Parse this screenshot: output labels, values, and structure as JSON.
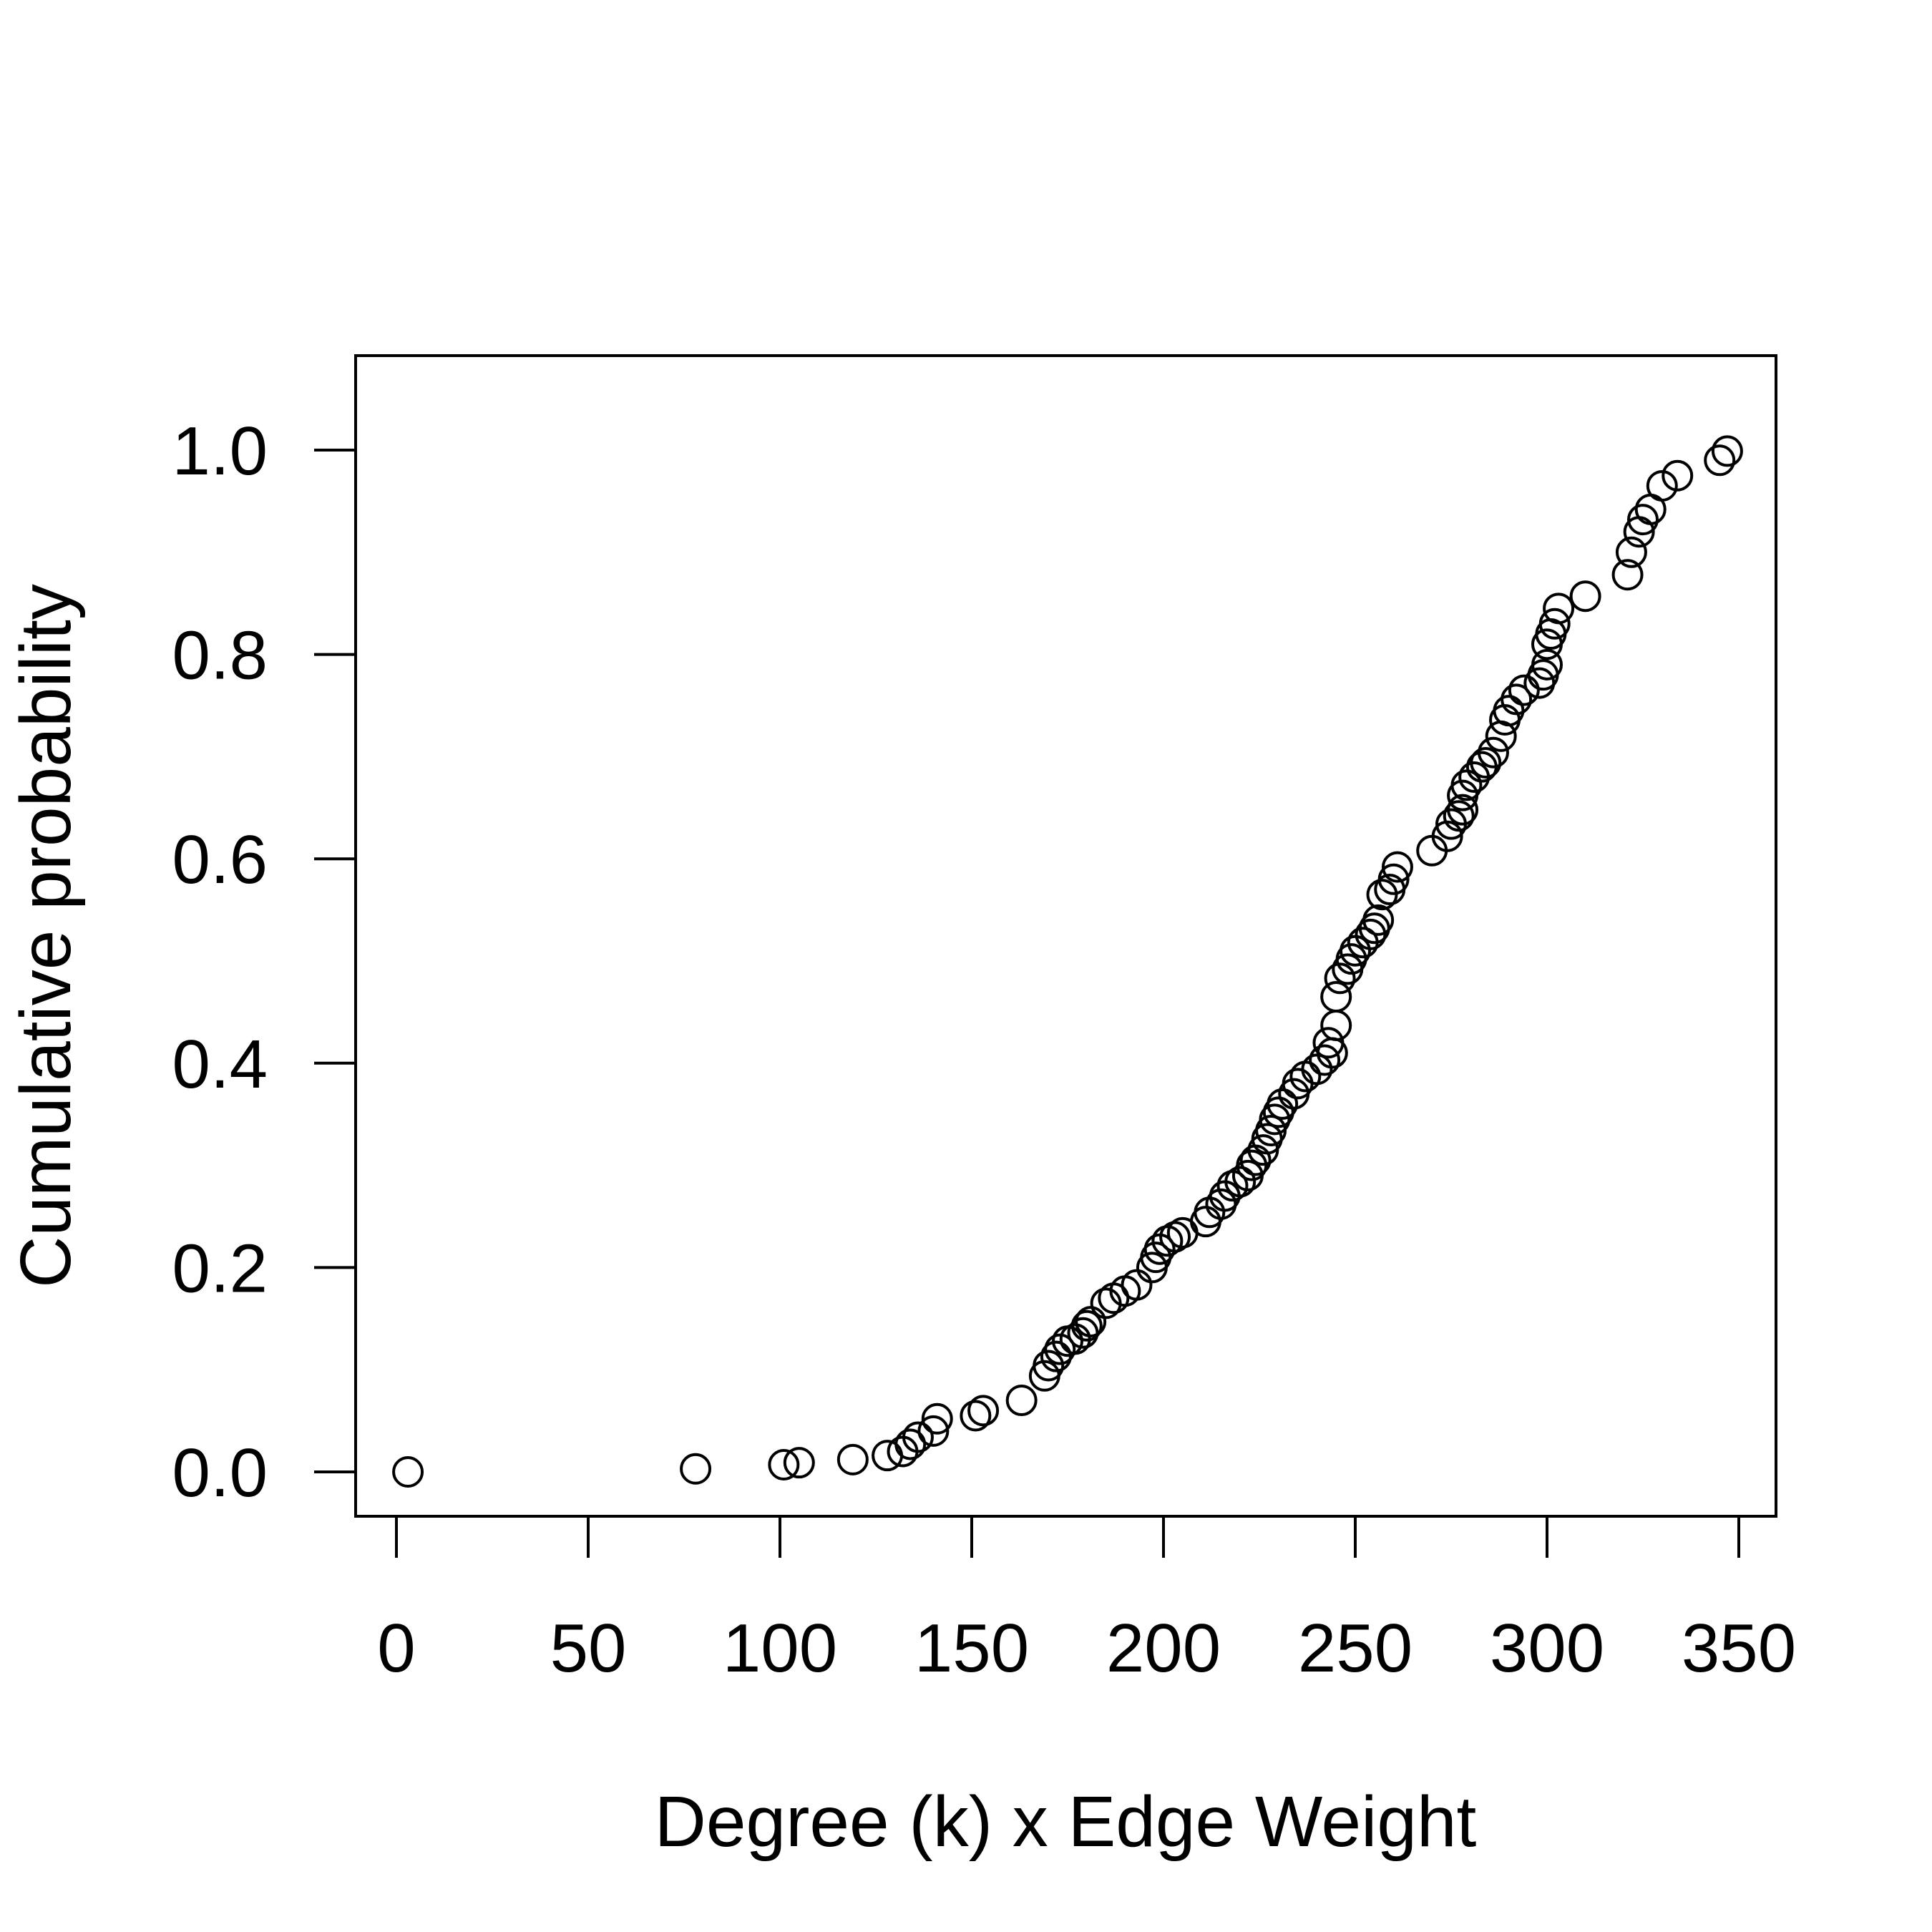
{
  "chart_data": {
    "type": "scatter",
    "title": "",
    "xlabel": "Degree (k) x Edge Weight",
    "ylabel": "Cumulative probability",
    "xlim": [
      -8,
      363
    ],
    "ylim": [
      -0.04,
      1.09
    ],
    "grid": false,
    "legend": "none",
    "x_ticks": [
      0,
      50,
      100,
      150,
      200,
      250,
      300,
      350
    ],
    "x_tick_labels": [
      "0",
      "50",
      "100",
      "150",
      "200",
      "250",
      "300",
      "350"
    ],
    "y_ticks": [
      0.0,
      0.2,
      0.4,
      0.6,
      0.8,
      1.0
    ],
    "y_tick_labels": [
      "0.0",
      "0.2",
      "0.4",
      "0.6",
      "0.8",
      "1.0"
    ],
    "marker": "open-circle",
    "color": "#000000",
    "points": [
      [
        3,
        0.0
      ],
      [
        78,
        0.003
      ],
      [
        101,
        0.007
      ],
      [
        105,
        0.009
      ],
      [
        119,
        0.012
      ],
      [
        128,
        0.016
      ],
      [
        132,
        0.02
      ],
      [
        134,
        0.027
      ],
      [
        136,
        0.034
      ],
      [
        140,
        0.04
      ],
      [
        141,
        0.052
      ],
      [
        151,
        0.055
      ],
      [
        153,
        0.06
      ],
      [
        163,
        0.07
      ],
      [
        169,
        0.094
      ],
      [
        170,
        0.104
      ],
      [
        172,
        0.113
      ],
      [
        173,
        0.12
      ],
      [
        175,
        0.128
      ],
      [
        177,
        0.13
      ],
      [
        179,
        0.136
      ],
      [
        180,
        0.143
      ],
      [
        181,
        0.147
      ],
      [
        185,
        0.165
      ],
      [
        187,
        0.17
      ],
      [
        190,
        0.177
      ],
      [
        193,
        0.183
      ],
      [
        197,
        0.2
      ],
      [
        198,
        0.21
      ],
      [
        199,
        0.218
      ],
      [
        201,
        0.226
      ],
      [
        203,
        0.23
      ],
      [
        205,
        0.234
      ],
      [
        211,
        0.245
      ],
      [
        212,
        0.254
      ],
      [
        215,
        0.262
      ],
      [
        216,
        0.27
      ],
      [
        218,
        0.28
      ],
      [
        220,
        0.284
      ],
      [
        222,
        0.29
      ],
      [
        223,
        0.3
      ],
      [
        224,
        0.305
      ],
      [
        226,
        0.315
      ],
      [
        227,
        0.326
      ],
      [
        228,
        0.334
      ],
      [
        229,
        0.345
      ],
      [
        230,
        0.352
      ],
      [
        231,
        0.36
      ],
      [
        234,
        0.37
      ],
      [
        235,
        0.38
      ],
      [
        237,
        0.387
      ],
      [
        240,
        0.394
      ],
      [
        242,
        0.403
      ],
      [
        244,
        0.41
      ],
      [
        243,
        0.42
      ],
      [
        245,
        0.437
      ],
      [
        245,
        0.465
      ],
      [
        246,
        0.483
      ],
      [
        248,
        0.492
      ],
      [
        249,
        0.502
      ],
      [
        250,
        0.51
      ],
      [
        252,
        0.518
      ],
      [
        254,
        0.526
      ],
      [
        255,
        0.532
      ],
      [
        256,
        0.54
      ],
      [
        257,
        0.565
      ],
      [
        259,
        0.57
      ],
      [
        260,
        0.58
      ],
      [
        261,
        0.592
      ],
      [
        270,
        0.608
      ],
      [
        274,
        0.622
      ],
      [
        275,
        0.634
      ],
      [
        277,
        0.642
      ],
      [
        278,
        0.648
      ],
      [
        278,
        0.662
      ],
      [
        279,
        0.672
      ],
      [
        281,
        0.68
      ],
      [
        283,
        0.69
      ],
      [
        284,
        0.694
      ],
      [
        286,
        0.704
      ],
      [
        288,
        0.72
      ],
      [
        289,
        0.736
      ],
      [
        290,
        0.745
      ],
      [
        292,
        0.756
      ],
      [
        294,
        0.765
      ],
      [
        298,
        0.772
      ],
      [
        299,
        0.78
      ],
      [
        300,
        0.79
      ],
      [
        300,
        0.81
      ],
      [
        301,
        0.82
      ],
      [
        302,
        0.83
      ],
      [
        303,
        0.845
      ],
      [
        310,
        0.857
      ],
      [
        321,
        0.878
      ],
      [
        322,
        0.9
      ],
      [
        324,
        0.92
      ],
      [
        325,
        0.932
      ],
      [
        327,
        0.942
      ],
      [
        330,
        0.965
      ],
      [
        334,
        0.975
      ],
      [
        345,
        0.99
      ],
      [
        347,
        0.999
      ]
    ]
  }
}
